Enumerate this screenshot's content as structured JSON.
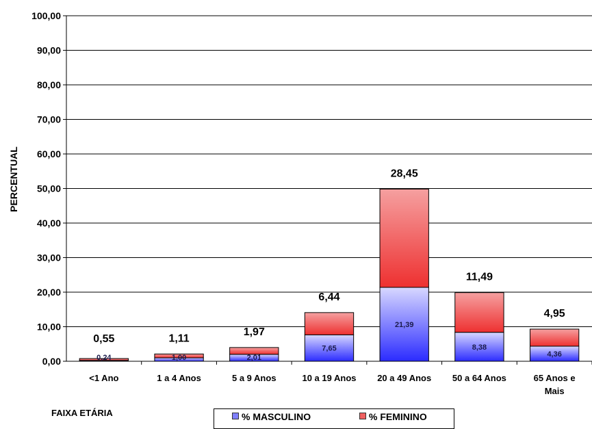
{
  "chart_data": {
    "type": "bar",
    "stacked": true,
    "ylabel": "PERCENTUAL",
    "xlabel": "FAIXA ETÁRIA",
    "ylim": [
      0,
      100
    ],
    "yticks": [
      "0,00",
      "10,00",
      "20,00",
      "30,00",
      "40,00",
      "50,00",
      "60,00",
      "70,00",
      "80,00",
      "90,00",
      "100,00"
    ],
    "grid": true,
    "legend_position": "bottom",
    "categories": [
      [
        "<1 Ano"
      ],
      [
        "1 a 4 Anos"
      ],
      [
        "5 a 9 Anos"
      ],
      [
        "10 a 19 Anos"
      ],
      [
        "20 a 49 Anos"
      ],
      [
        "50 a 64 Anos"
      ],
      [
        "65 Anos e",
        "Mais"
      ]
    ],
    "series": [
      {
        "name": "% MASCULINO",
        "values": [
          0.24,
          1.0,
          2.01,
          7.65,
          21.39,
          8.38,
          4.36
        ],
        "labels": [
          "0,24",
          "1,00",
          "2,01",
          "7,65",
          "21,39",
          "8,38",
          "4,36"
        ],
        "color": "#6b6bff"
      },
      {
        "name": "% FEMININO",
        "values": [
          0.55,
          1.11,
          1.97,
          6.44,
          28.45,
          11.49,
          4.95
        ],
        "labels": [
          "0,55",
          "1,11",
          "1,97",
          "6,44",
          "28,45",
          "11,49",
          "4,95"
        ],
        "color": "#f04646"
      }
    ]
  }
}
